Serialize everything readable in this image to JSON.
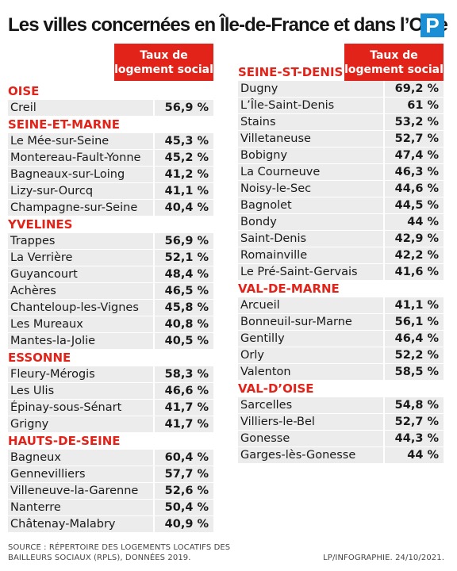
{
  "title": "Les villes concernées en Île-de-France et dans l’Oise",
  "logo": "P",
  "column_header": "Taux de logement social",
  "left": [
    {
      "dept": "OISE",
      "rows": [
        {
          "city": "Creil",
          "pct": "56,9 %"
        }
      ]
    },
    {
      "dept": "SEINE-ET-MARNE",
      "rows": [
        {
          "city": "Le Mée-sur-Seine",
          "pct": "45,3 %"
        },
        {
          "city": "Montereau-Fault-Yonne",
          "pct": "45,2 %"
        },
        {
          "city": "Bagneaux-sur-Loing",
          "pct": "41,2 %"
        },
        {
          "city": "Lizy-sur-Ourcq",
          "pct": "41,1 %"
        },
        {
          "city": "Champagne-sur-Seine",
          "pct": "40,4 %"
        }
      ]
    },
    {
      "dept": "YVELINES",
      "rows": [
        {
          "city": "Trappes",
          "pct": "56,9 %"
        },
        {
          "city": "La Verrière",
          "pct": "52,1 %"
        },
        {
          "city": "Guyancourt",
          "pct": "48,4 %"
        },
        {
          "city": "Achères",
          "pct": "46,5 %"
        },
        {
          "city": "Chanteloup-les-Vignes",
          "pct": "45,8 %"
        },
        {
          "city": "Les Mureaux",
          "pct": "40,8 %"
        },
        {
          "city": "Mantes-la-Jolie",
          "pct": "40,5 %"
        }
      ]
    },
    {
      "dept": "ESSONNE",
      "rows": [
        {
          "city": "Fleury-Mérogis",
          "pct": "58,3 %"
        },
        {
          "city": "Les Ulis",
          "pct": "46,6 %"
        },
        {
          "city": "Épinay-sous-Sénart",
          "pct": "41,7 %"
        },
        {
          "city": "Grigny",
          "pct": "41,7 %"
        }
      ]
    },
    {
      "dept": "HAUTS-DE-SEINE",
      "rows": [
        {
          "city": "Bagneux",
          "pct": "60,4 %"
        },
        {
          "city": "Gennevilliers",
          "pct": "57,7 %"
        },
        {
          "city": "Villeneuve-la-Garenne",
          "pct": "52,6 %"
        },
        {
          "city": "Nanterre",
          "pct": "50,4 %"
        },
        {
          "city": "Châtenay-Malabry",
          "pct": "40,9 %"
        }
      ]
    }
  ],
  "right": [
    {
      "dept": "SEINE-ST-DENIS",
      "rows": [
        {
          "city": "Dugny",
          "pct": "69,2 %"
        },
        {
          "city": "L’Île-Saint-Denis",
          "pct": "61 %"
        },
        {
          "city": "Stains",
          "pct": "53,2 %"
        },
        {
          "city": "Villetaneuse",
          "pct": "52,7 %"
        },
        {
          "city": "Bobigny",
          "pct": "47,4 %"
        },
        {
          "city": "La Courneuve",
          "pct": "46,3 %"
        },
        {
          "city": "Noisy-le-Sec",
          "pct": "44,6 %"
        },
        {
          "city": "Bagnolet",
          "pct": "44,5 %"
        },
        {
          "city": "Bondy",
          "pct": "44 %"
        },
        {
          "city": "Saint-Denis",
          "pct": "42,9 %"
        },
        {
          "city": "Romainville",
          "pct": "42,2 %"
        },
        {
          "city": "Le Pré-Saint-Gervais",
          "pct": "41,6 %"
        }
      ]
    },
    {
      "dept": "VAL-DE-MARNE",
      "rows": [
        {
          "city": "Arcueil",
          "pct": "41,1 %"
        },
        {
          "city": "Bonneuil-sur-Marne",
          "pct": "56,1 %"
        },
        {
          "city": "Gentilly",
          "pct": "46,4 %"
        },
        {
          "city": "Orly",
          "pct": "52,2 %"
        },
        {
          "city": "Valenton",
          "pct": "58,5 %"
        }
      ]
    },
    {
      "dept": "VAL-D’OISE",
      "rows": [
        {
          "city": "Sarcelles",
          "pct": "54,8 %"
        },
        {
          "city": "Villiers-le-Bel",
          "pct": "52,7 %"
        },
        {
          "city": "Gonesse",
          "pct": "44,3 %"
        },
        {
          "city": "Garges-lès-Gonesse",
          "pct": "44 %"
        }
      ]
    }
  ],
  "source": "SOURCE : RÉPERTOIRE DES LOGEMENTS LOCATIFS DES BAILLEURS SOCIAUX (RPLS), DONNÉES 2019.",
  "credit": "LP/INFOGRAPHIE.  24/10/2021.",
  "colors": {
    "accent": "#e2231a",
    "row_bg": "#ececec",
    "logo": "#1a8fd6"
  }
}
